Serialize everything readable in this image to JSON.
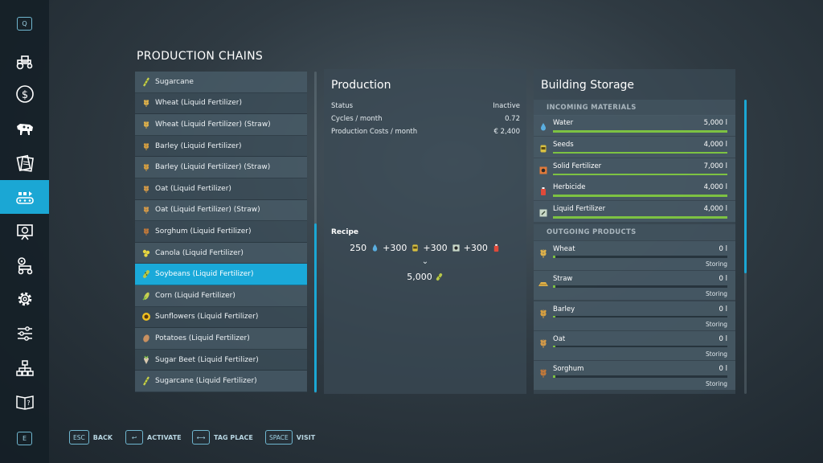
{
  "sidebar": {
    "top_key": "Q",
    "bottom_key": "E",
    "items": [
      {
        "icon": "tractor-icon"
      },
      {
        "icon": "dollar-icon"
      },
      {
        "icon": "cow-icon"
      },
      {
        "icon": "contracts-icon"
      },
      {
        "icon": "production-icon",
        "active": true
      },
      {
        "icon": "presentation-icon"
      },
      {
        "icon": "vehicles-icon"
      },
      {
        "icon": "gear-icon"
      },
      {
        "icon": "sliders-icon"
      },
      {
        "icon": "network-icon"
      },
      {
        "icon": "help-book-icon"
      }
    ]
  },
  "title": "PRODUCTION CHAINS",
  "chains": [
    {
      "label": "Sugarcane",
      "icon": "sugarcane-icon",
      "color": "#c8d24a"
    },
    {
      "label": "Wheat (Liquid Fertilizer)",
      "icon": "wheat-icon",
      "color": "#e0b24a"
    },
    {
      "label": "Wheat (Liquid Fertilizer) (Straw)",
      "icon": "wheat-icon",
      "color": "#e0b24a"
    },
    {
      "label": "Barley (Liquid Fertilizer)",
      "icon": "barley-icon",
      "color": "#d8a040"
    },
    {
      "label": "Barley (Liquid Fertilizer) (Straw)",
      "icon": "barley-icon",
      "color": "#d8a040"
    },
    {
      "label": "Oat (Liquid Fertilizer)",
      "icon": "oat-icon",
      "color": "#d49a48"
    },
    {
      "label": "Oat (Liquid Fertilizer) (Straw)",
      "icon": "oat-icon",
      "color": "#d49a48"
    },
    {
      "label": "Sorghum (Liquid Fertilizer)",
      "icon": "sorghum-icon",
      "color": "#c0783a"
    },
    {
      "label": "Canola (Liquid Fertilizer)",
      "icon": "canola-icon",
      "color": "#e8d640"
    },
    {
      "label": "Soybeans (Liquid Fertilizer)",
      "icon": "soybean-icon",
      "color": "#b8c84a",
      "selected": true
    },
    {
      "label": "Corn (Liquid Fertilizer)",
      "icon": "corn-icon",
      "color": "#c8d050"
    },
    {
      "label": "Sunflowers (Liquid Fertilizer)",
      "icon": "sunflower-icon",
      "color": "#f0c020"
    },
    {
      "label": "Potatoes (Liquid Fertilizer)",
      "icon": "potato-icon",
      "color": "#c89060"
    },
    {
      "label": "Sugar Beet (Liquid Fertilizer)",
      "icon": "sugarbeet-icon",
      "color": "#d8c8b0"
    },
    {
      "label": "Sugarcane (Liquid Fertilizer)",
      "icon": "sugarcane-icon",
      "color": "#c8d24a"
    }
  ],
  "production": {
    "title": "Production",
    "rows": [
      {
        "label": "Status",
        "value": "Inactive"
      },
      {
        "label": "Cycles / month",
        "value": "0.72"
      },
      {
        "label": "Production Costs / month",
        "value": "€ 2,400"
      }
    ],
    "recipe_label": "Recipe",
    "recipe_inputs": [
      {
        "prefix": "250",
        "icon": "water-drop-icon",
        "color": "#5aaee0"
      },
      {
        "prefix": "+300",
        "icon": "seeds-icon",
        "color": "#d8c040"
      },
      {
        "prefix": "+300",
        "icon": "solid-fertilizer-icon",
        "color": "#c8d8c8"
      },
      {
        "prefix": "+300",
        "icon": "herbicide-icon",
        "color": "#e04a3a"
      }
    ],
    "recipe_arrow": "⌄",
    "recipe_output": {
      "amount": "5,000",
      "icon": "soybean-icon",
      "color": "#b8c84a"
    }
  },
  "storage": {
    "title": "Building Storage",
    "incoming_header": "INCOMING MATERIALS",
    "incoming": [
      {
        "name": "Water",
        "value": "5,000 l",
        "fill": 1.0,
        "icon": "water-drop-icon",
        "color": "#5aaee0"
      },
      {
        "name": "Seeds",
        "value": "4,000 l",
        "fill": 1.0,
        "icon": "seeds-icon",
        "color": "#d8c040"
      },
      {
        "name": "Solid Fertilizer",
        "value": "7,000 l",
        "fill": 1.0,
        "icon": "solid-fertilizer-icon",
        "color": "#e07a3a"
      },
      {
        "name": "Herbicide",
        "value": "4,000 l",
        "fill": 1.0,
        "icon": "herbicide-icon",
        "color": "#e04a3a"
      },
      {
        "name": "Liquid Fertilizer",
        "value": "4,000 l",
        "fill": 1.0,
        "icon": "liquid-fertilizer-icon",
        "color": "#c8d8c8"
      }
    ],
    "outgoing_header": "OUTGOING PRODUCTS",
    "outgoing": [
      {
        "name": "Wheat",
        "value": "0 l",
        "mode": "Storing",
        "fill": 0.01,
        "icon": "wheat-icon",
        "color": "#e0b24a"
      },
      {
        "name": "Straw",
        "value": "0 l",
        "mode": "Storing",
        "fill": 0.01,
        "icon": "straw-icon",
        "color": "#e0b24a"
      },
      {
        "name": "Barley",
        "value": "0 l",
        "mode": "Storing",
        "fill": 0.01,
        "icon": "barley-icon",
        "color": "#d8a040"
      },
      {
        "name": "Oat",
        "value": "0 l",
        "mode": "Storing",
        "fill": 0.01,
        "icon": "oat-icon",
        "color": "#d49a48"
      },
      {
        "name": "Sorghum",
        "value": "0 l",
        "mode": "Storing",
        "fill": 0.01,
        "icon": "sorghum-icon",
        "color": "#c0783a"
      }
    ]
  },
  "hints": [
    {
      "key": "ESC",
      "label": "BACK"
    },
    {
      "key": "↩",
      "label": "ACTIVATE"
    },
    {
      "key": "⟷",
      "label": "TAG PLACE"
    },
    {
      "key": "SPACE",
      "label": "VISIT"
    }
  ],
  "colors": {
    "accent": "#1ba7d4",
    "bar": "#7dc242"
  }
}
